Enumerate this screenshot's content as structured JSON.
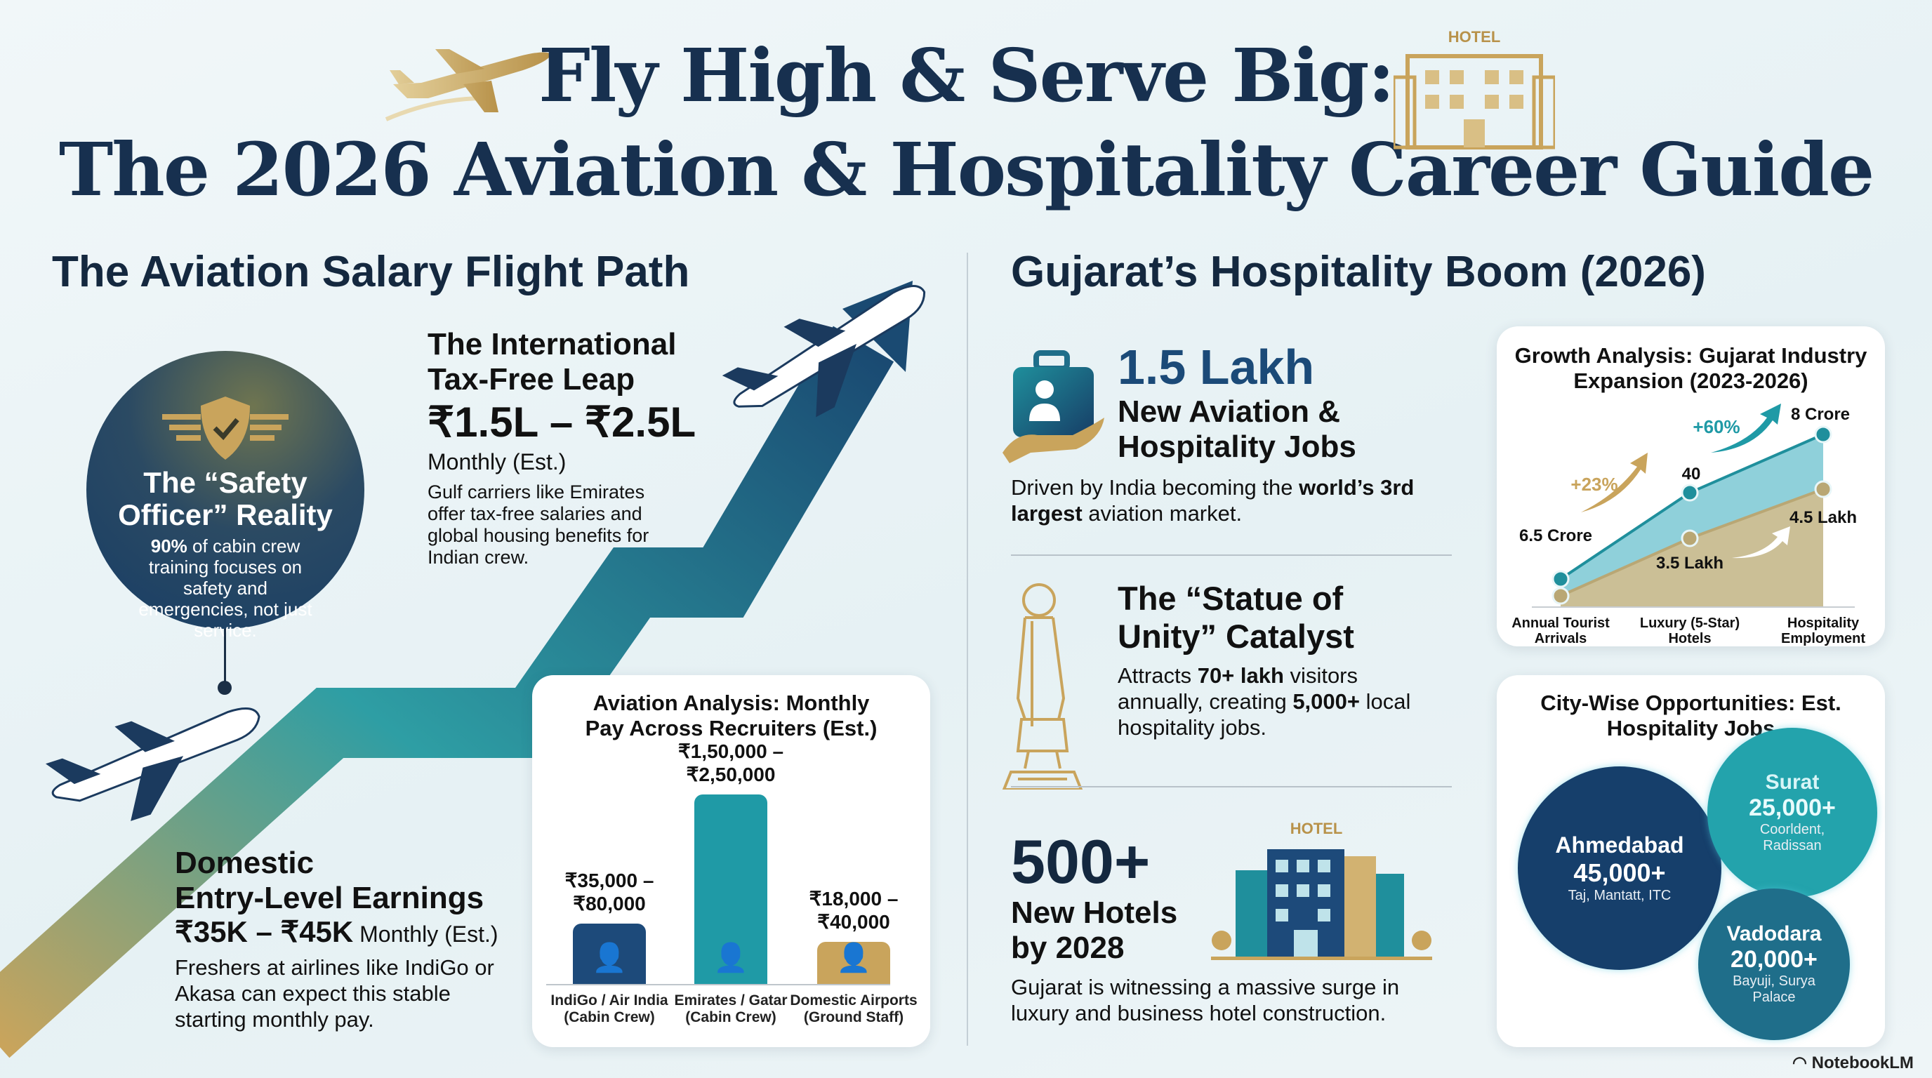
{
  "header": {
    "title_line1": "Fly High & Serve Big:",
    "title_line2": "The 2026 Aviation & Hospitality Career Guide",
    "hotel_sign": "HOTEL"
  },
  "aviation": {
    "heading": "The Aviation Salary Flight Path",
    "safety": {
      "title_line1": "The “Safety",
      "title_line2": "Officer” Reality",
      "stat": "90%",
      "text": " of cabin crew training focuses on safety and emergencies, not just service."
    },
    "international": {
      "title_line1": "The International",
      "title_line2": "Tax-Free Leap",
      "salary": "₹1.5L – ₹2.5L",
      "period": "Monthly (Est.)",
      "text": "Gulf carriers like Emirates offer tax-free salaries and global housing benefits for Indian crew."
    },
    "domestic": {
      "title_line1": "Domestic",
      "title_line2": "Entry-Level Earnings",
      "salary": "₹35K – ₹45K",
      "period": " Monthly (Est.)",
      "text": "Freshers at airlines like IndiGo or Akasa can expect this stable starting monthly pay."
    }
  },
  "hospitality": {
    "heading": "Gujarat’s Hospitality Boom (2026)",
    "jobs": {
      "value": "1.5 Lakh",
      "title_line1": "New Aviation &",
      "title_line2": "Hospitality Jobs",
      "text_a": "Driven by India becoming the ",
      "text_b": "world’s 3rd largest",
      "text_c": " aviation market."
    },
    "statue": {
      "title_line1": "The “Statue of",
      "title_line2": "Unity” Catalyst",
      "text_a": "Attracts ",
      "text_b": "70+ lakh",
      "text_c": " visitors annually, creating ",
      "text_d": "5,000+",
      "text_e": " local hospitality jobs."
    },
    "hotels": {
      "value": "500+",
      "title_line1": "New Hotels",
      "title_line2": "by 2028",
      "sign": "HOTEL",
      "text": "Gujarat is witnessing a massive surge in luxury and business hotel construction."
    }
  },
  "chart_data": [
    {
      "type": "bar",
      "title": "Aviation Analysis: Monthly Pay Across Recruiters (Est.)",
      "categories": [
        "IndiGo / Air India (Cabin Crew)",
        "Emirates / Gatar (Cabin Crew)",
        "Domestic Airports (Ground Staff)"
      ],
      "ranges": [
        [
          35000,
          80000
        ],
        [
          150000,
          250000
        ],
        [
          18000,
          40000
        ]
      ],
      "data_labels": [
        [
          "₹35,000 –",
          "₹80,000"
        ],
        [
          "₹1,50,000 –",
          "₹2,50,000"
        ],
        [
          "₹18,000 –",
          "₹40,000"
        ]
      ],
      "colors": [
        "#1d4a7a",
        "#1f9aa6",
        "#c9a45c"
      ],
      "icons": [
        "pilot-icon",
        "cabin-crew-icon",
        "ground-staff-icon"
      ]
    },
    {
      "type": "area",
      "title": "Growth Analysis: Gujarat Industry Expansion (2023-2026)",
      "categories": [
        "Annual Tourist Arrivals",
        "Luxury (5-Star) Hotels",
        "Hospitality Employment"
      ],
      "series": [
        {
          "point_labels": [
            "6.5 Crore",
            "40",
            "8 Crore"
          ],
          "color": "#1f8f9c"
        },
        {
          "point_labels": [
            "",
            "3.5 Lakh",
            "4.5 Lakh"
          ],
          "color": "#b9a774"
        }
      ],
      "annotations": [
        {
          "text": "+23%",
          "color": "#c9a45c"
        },
        {
          "text": "+60%",
          "color": "#1f9aa6"
        }
      ]
    },
    {
      "type": "bubble",
      "title": "City-Wise Opportunities: Est. Hospitality Jobs",
      "items": [
        {
          "city": "Ahmedabad",
          "jobs": 45000,
          "label": "45,000+",
          "hotels": "Taj, Mantatt, ITC",
          "color": "#163f6b"
        },
        {
          "city": "Surat",
          "jobs": 25000,
          "label": "25,000+",
          "hotels": "Coorldent, Radissan",
          "color": "#23a3ac"
        },
        {
          "city": "Vadodara",
          "jobs": 20000,
          "label": "20,000+",
          "hotels": "Bayuji, Surya Palace",
          "color": "#1f6e8a"
        }
      ]
    }
  ],
  "footer": {
    "brand": "NotebookLM"
  }
}
